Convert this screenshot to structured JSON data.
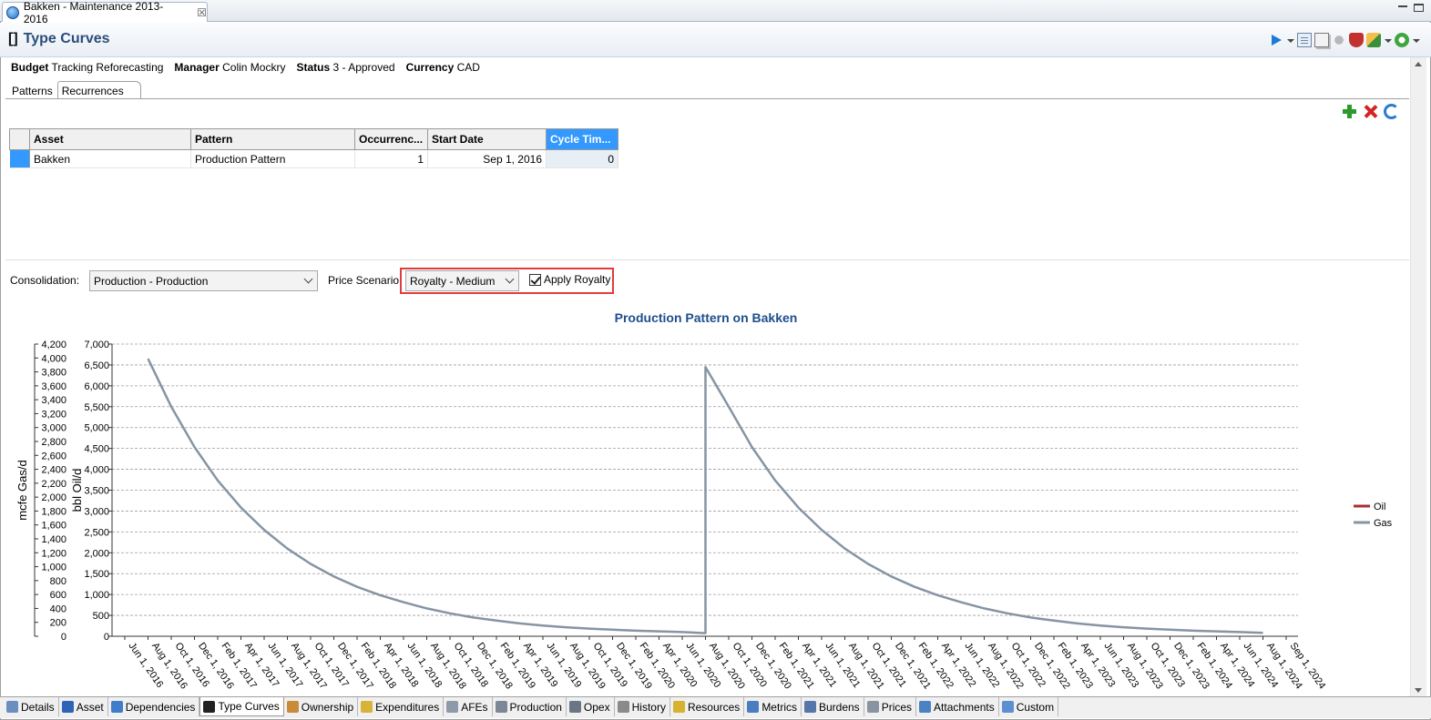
{
  "editor_tab": {
    "title": "Bakken - Maintenance 2013-2016",
    "close": "☒"
  },
  "header": {
    "bracket": "[]",
    "title": "Type Curves"
  },
  "info": {
    "budget_label": "Budget",
    "budget_value": "Tracking",
    "forecast_value": "Reforecasting",
    "manager_label": "Manager",
    "manager_value": "Colin Mockry",
    "status_label": "Status",
    "status_value": "3 - Approved",
    "currency_label": "Currency",
    "currency_value": "CAD"
  },
  "subtabs": [
    {
      "label": "Patterns"
    },
    {
      "label": "Recurrences"
    }
  ],
  "grid": {
    "columns": [
      "Asset",
      "Pattern",
      "Occurrenc...",
      "Start Date",
      "Cycle Tim..."
    ],
    "rows": [
      {
        "asset": "Bakken",
        "pattern": "Production Pattern",
        "occurrences": "1",
        "start_date": "Sep 1, 2016",
        "cycle_time": "0"
      }
    ]
  },
  "controls": {
    "consolidation_label": "Consolidation:",
    "consolidation_value": "Production - Production",
    "price_label": "Price Scenario:",
    "price_value": "Royalty - Medium",
    "apply_royalty_label": "Apply Royalty",
    "apply_royalty_checked": true
  },
  "bottom_tabs": [
    {
      "label": "Details",
      "icon": "details-icon",
      "color": "#6a8fbf"
    },
    {
      "label": "Asset",
      "icon": "person-icon",
      "color": "#2f63b5"
    },
    {
      "label": "Dependencies",
      "icon": "tree-icon",
      "color": "#3f7cc9"
    },
    {
      "label": "Type Curves",
      "icon": "bracket-icon",
      "color": "#222222",
      "active": true
    },
    {
      "label": "Ownership",
      "icon": "handshake-icon",
      "color": "#c98a3a"
    },
    {
      "label": "Expenditures",
      "icon": "money-icon",
      "color": "#d8b33a"
    },
    {
      "label": "AFEs",
      "icon": "document-stack-icon",
      "color": "#8f9aa8"
    },
    {
      "label": "Production",
      "icon": "barrel-icon",
      "color": "#7d8896"
    },
    {
      "label": "Opex",
      "icon": "gears-icon",
      "color": "#6a7684"
    },
    {
      "label": "History",
      "icon": "grid-icon",
      "color": "#8a8a8a"
    },
    {
      "label": "Resources",
      "icon": "cube-icon",
      "color": "#d7b22e"
    },
    {
      "label": "Metrics",
      "icon": "table-icon",
      "color": "#4a7cc0"
    },
    {
      "label": "Burdens",
      "icon": "gears-blue-icon",
      "color": "#5476a8"
    },
    {
      "label": "Prices",
      "icon": "barrel-gray-icon",
      "color": "#8a94a0"
    },
    {
      "label": "Attachments",
      "icon": "attachment-icon",
      "color": "#4c82c4"
    },
    {
      "label": "Custom",
      "icon": "custom-table-icon",
      "color": "#5b8fcf"
    }
  ],
  "chart_data": {
    "type": "line",
    "title": "Production Pattern on Bakken",
    "y1label": "bbl Oil/d",
    "y2label": "mcfe Gas/d",
    "y1lim": [
      0,
      7000
    ],
    "y2lim": [
      0,
      4200
    ],
    "y1ticks": [
      "0",
      "500",
      "1,000",
      "1,500",
      "2,000",
      "2,500",
      "3,000",
      "3,500",
      "4,000",
      "4,500",
      "5,000",
      "5,500",
      "6,000",
      "6,500",
      "7,000"
    ],
    "y2ticks": [
      "0",
      "200",
      "400",
      "600",
      "800",
      "1,000",
      "1,200",
      "1,400",
      "1,600",
      "1,800",
      "2,000",
      "2,200",
      "2,400",
      "2,600",
      "2,800",
      "3,000",
      "3,200",
      "3,400",
      "3,600",
      "3,800",
      "4,000",
      "4,200"
    ],
    "x_ticks": [
      "Jun 1, 2016",
      "Aug 1, 2016",
      "Oct 1, 2016",
      "Dec 1, 2016",
      "Feb 1, 2017",
      "Apr 1, 2017",
      "Jun 1, 2017",
      "Aug 1, 2017",
      "Oct 1, 2017",
      "Dec 1, 2017",
      "Feb 1, 2018",
      "Apr 1, 2018",
      "Jun 1, 2018",
      "Aug 1, 2018",
      "Oct 1, 2018",
      "Dec 1, 2018",
      "Feb 1, 2019",
      "Apr 1, 2019",
      "Jun 1, 2019",
      "Aug 1, 2019",
      "Oct 1, 2019",
      "Dec 1, 2019",
      "Feb 1, 2020",
      "Apr 1, 2020",
      "Jun 1, 2020",
      "Aug 1, 2020",
      "Oct 1, 2020",
      "Dec 1, 2020",
      "Feb 1, 2021",
      "Apr 1, 2021",
      "Jun 1, 2021",
      "Aug 1, 2021",
      "Oct 1, 2021",
      "Dec 1, 2021",
      "Feb 1, 2022",
      "Apr 1, 2022",
      "Jun 1, 2022",
      "Aug 1, 2022",
      "Oct 1, 2022",
      "Dec 1, 2022",
      "Feb 1, 2023",
      "Apr 1, 2023",
      "Jun 1, 2023",
      "Aug 1, 2023",
      "Oct 1, 2023",
      "Dec 1, 2023",
      "Feb 1, 2024",
      "Apr 1, 2024",
      "Jun 1, 2024",
      "Aug 1, 2024",
      "Sep 1, 2024"
    ],
    "grid": true,
    "legend_position": "right",
    "series": [
      {
        "name": "Oil",
        "axis": "left",
        "color": "#a33232",
        "points": [
          [
            "Aug 1, 2016",
            0
          ],
          [
            "Sep 1, 2016",
            0
          ],
          [
            "Sep 1, 2016",
            6420
          ],
          [
            "Oct 1, 2016",
            6000
          ],
          [
            "Dec 1, 2016",
            5150
          ],
          [
            "Feb 1, 2017",
            4450
          ],
          [
            "Apr 1, 2017",
            3780
          ],
          [
            "Jun 1, 2017",
            3150
          ],
          [
            "Aug 1, 2017",
            2640
          ],
          [
            "Oct 1, 2017",
            2200
          ],
          [
            "Dec 1, 2017",
            1830
          ],
          [
            "Feb 1, 2018",
            1520
          ],
          [
            "Apr 1, 2018",
            1260
          ],
          [
            "Jun 1, 2018",
            1050
          ],
          [
            "Aug 1, 2018",
            870
          ],
          [
            "Oct 1, 2018",
            720
          ],
          [
            "Dec 1, 2018",
            600
          ],
          [
            "Feb 1, 2019",
            500
          ],
          [
            "Apr 1, 2019",
            420
          ],
          [
            "Jun 1, 2019",
            350
          ],
          [
            "Aug 1, 2019",
            300
          ],
          [
            "Oct 1, 2019",
            250
          ],
          [
            "Dec 1, 2019",
            210
          ],
          [
            "Feb 1, 2020",
            180
          ],
          [
            "Apr 1, 2020",
            150
          ],
          [
            "Jun 1, 2020",
            130
          ],
          [
            "Aug 1, 2020",
            0
          ],
          [
            "Sep 1, 2020",
            0
          ],
          [
            "Sep 1, 2020",
            6420
          ],
          [
            "Oct 1, 2020",
            6000
          ],
          [
            "Dec 1, 2020",
            5150
          ],
          [
            "Feb 1, 2021",
            4450
          ],
          [
            "Apr 1, 2021",
            3780
          ],
          [
            "Jun 1, 2021",
            3150
          ],
          [
            "Aug 1, 2021",
            2640
          ],
          [
            "Oct 1, 2021",
            2200
          ],
          [
            "Dec 1, 2021",
            1830
          ],
          [
            "Feb 1, 2022",
            1520
          ],
          [
            "Apr 1, 2022",
            1260
          ],
          [
            "Jun 1, 2022",
            1050
          ],
          [
            "Aug 1, 2022",
            870
          ],
          [
            "Oct 1, 2022",
            720
          ],
          [
            "Dec 1, 2022",
            600
          ],
          [
            "Feb 1, 2023",
            500
          ],
          [
            "Apr 1, 2023",
            420
          ],
          [
            "Jun 1, 2023",
            350
          ],
          [
            "Aug 1, 2023",
            300
          ],
          [
            "Oct 1, 2023",
            250
          ],
          [
            "Dec 1, 2023",
            210
          ],
          [
            "Feb 1, 2024",
            180
          ],
          [
            "Apr 1, 2024",
            150
          ],
          [
            "Jun 1, 2024",
            130
          ],
          [
            "Aug 1, 2024",
            110
          ]
        ]
      },
      {
        "name": "Gas",
        "axis": "right",
        "color": "#8694a3",
        "points": [
          [
            "Aug 1, 2016",
            3990
          ],
          [
            "Oct 1, 2016",
            3300
          ],
          [
            "Dec 1, 2016",
            2720
          ],
          [
            "Feb 1, 2017",
            2240
          ],
          [
            "Apr 1, 2017",
            1850
          ],
          [
            "Jun 1, 2017",
            1530
          ],
          [
            "Aug 1, 2017",
            1260
          ],
          [
            "Oct 1, 2017",
            1040
          ],
          [
            "Dec 1, 2017",
            860
          ],
          [
            "Feb 1, 2018",
            710
          ],
          [
            "Apr 1, 2018",
            590
          ],
          [
            "Jun 1, 2018",
            490
          ],
          [
            "Aug 1, 2018",
            400
          ],
          [
            "Oct 1, 2018",
            330
          ],
          [
            "Dec 1, 2018",
            270
          ],
          [
            "Feb 1, 2019",
            225
          ],
          [
            "Apr 1, 2019",
            185
          ],
          [
            "Jun 1, 2019",
            155
          ],
          [
            "Aug 1, 2019",
            130
          ],
          [
            "Oct 1, 2019",
            110
          ],
          [
            "Dec 1, 2019",
            95
          ],
          [
            "Feb 1, 2020",
            80
          ],
          [
            "Apr 1, 2020",
            70
          ],
          [
            "Jun 1, 2020",
            60
          ],
          [
            "Aug 1, 2020",
            45
          ],
          [
            "Aug 1, 2020",
            3870
          ],
          [
            "Oct 1, 2020",
            3300
          ],
          [
            "Dec 1, 2020",
            2720
          ],
          [
            "Feb 1, 2021",
            2240
          ],
          [
            "Apr 1, 2021",
            1850
          ],
          [
            "Jun 1, 2021",
            1530
          ],
          [
            "Aug 1, 2021",
            1260
          ],
          [
            "Oct 1, 2021",
            1040
          ],
          [
            "Dec 1, 2021",
            860
          ],
          [
            "Feb 1, 2022",
            710
          ],
          [
            "Apr 1, 2022",
            590
          ],
          [
            "Jun 1, 2022",
            490
          ],
          [
            "Aug 1, 2022",
            400
          ],
          [
            "Oct 1, 2022",
            330
          ],
          [
            "Dec 1, 2022",
            270
          ],
          [
            "Feb 1, 2023",
            225
          ],
          [
            "Apr 1, 2023",
            185
          ],
          [
            "Jun 1, 2023",
            155
          ],
          [
            "Aug 1, 2023",
            130
          ],
          [
            "Oct 1, 2023",
            110
          ],
          [
            "Dec 1, 2023",
            95
          ],
          [
            "Feb 1, 2024",
            80
          ],
          [
            "Apr 1, 2024",
            70
          ],
          [
            "Jun 1, 2024",
            60
          ],
          [
            "Aug 1, 2024",
            50
          ]
        ]
      }
    ]
  }
}
